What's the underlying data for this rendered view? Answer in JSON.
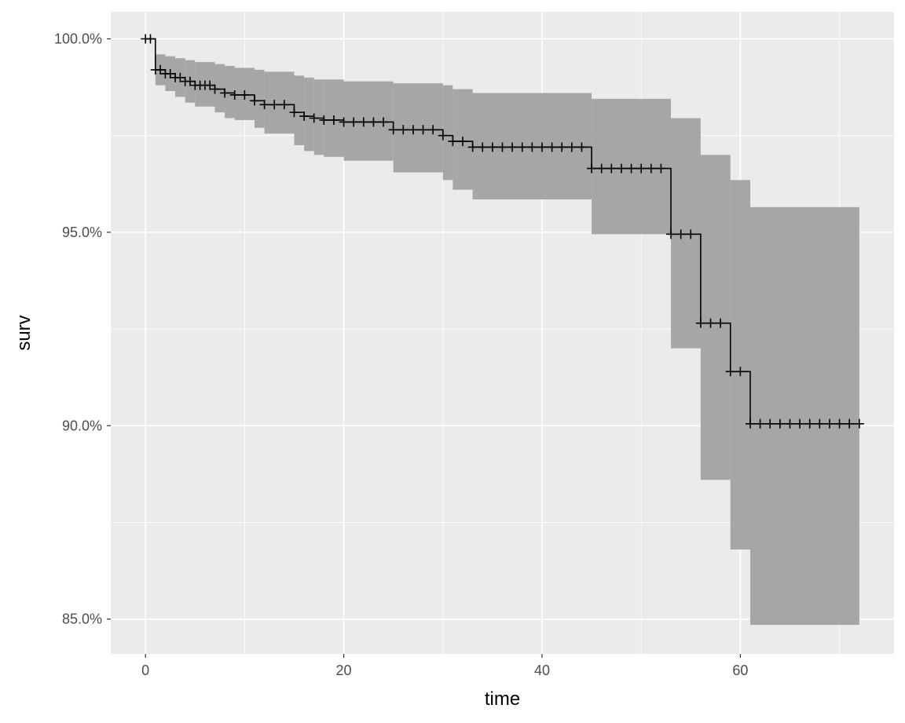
{
  "chart_data": {
    "type": "line",
    "xlabel": "time",
    "ylabel": "surv",
    "xlim": [
      -3.5,
      75.5
    ],
    "ylim": [
      84.1,
      100.7
    ],
    "x_ticks": [
      0,
      20,
      40,
      60
    ],
    "x_minor_ticks": [
      10,
      30,
      50,
      70
    ],
    "y_ticks": [
      100,
      95,
      90,
      85
    ],
    "y_tick_labels": [
      "100.0%",
      "95.0%",
      "90.0%",
      "85.0%"
    ],
    "y_minor_ticks": [
      97.5,
      92.5,
      87.5
    ],
    "grid": true,
    "colors": {
      "panel_background": "#ebebeb",
      "grid": "#ffffff",
      "ribbon": "#a6a6a6",
      "line": "#000000",
      "tick_label": "#4d4d4d",
      "axis_title": "#000000"
    },
    "survival_steps": [
      {
        "time": 0,
        "surv": 100.0,
        "lower": 100.0,
        "upper": 100.0
      },
      {
        "time": 1,
        "surv": 99.2,
        "lower": 98.8,
        "upper": 99.6
      },
      {
        "time": 2,
        "surv": 99.1,
        "lower": 98.65,
        "upper": 99.55
      },
      {
        "time": 3,
        "surv": 99.0,
        "lower": 98.5,
        "upper": 99.5
      },
      {
        "time": 4,
        "surv": 98.9,
        "lower": 98.35,
        "upper": 99.45
      },
      {
        "time": 5,
        "surv": 98.8,
        "lower": 98.25,
        "upper": 99.4
      },
      {
        "time": 7,
        "surv": 98.7,
        "lower": 98.1,
        "upper": 99.35
      },
      {
        "time": 8,
        "surv": 98.6,
        "lower": 97.95,
        "upper": 99.3
      },
      {
        "time": 9,
        "surv": 98.55,
        "lower": 97.9,
        "upper": 99.25
      },
      {
        "time": 11,
        "surv": 98.4,
        "lower": 97.7,
        "upper": 99.2
      },
      {
        "time": 12,
        "surv": 98.3,
        "lower": 97.55,
        "upper": 99.15
      },
      {
        "time": 15,
        "surv": 98.1,
        "lower": 97.25,
        "upper": 99.05
      },
      {
        "time": 16,
        "surv": 98.0,
        "lower": 97.1,
        "upper": 99.0
      },
      {
        "time": 17,
        "surv": 97.95,
        "lower": 97.0,
        "upper": 98.95
      },
      {
        "time": 18,
        "surv": 97.9,
        "lower": 96.95,
        "upper": 98.95
      },
      {
        "time": 20,
        "surv": 97.85,
        "lower": 96.85,
        "upper": 98.9
      },
      {
        "time": 25,
        "surv": 97.65,
        "lower": 96.55,
        "upper": 98.85
      },
      {
        "time": 30,
        "surv": 97.5,
        "lower": 96.35,
        "upper": 98.8
      },
      {
        "time": 31,
        "surv": 97.35,
        "lower": 96.1,
        "upper": 98.7
      },
      {
        "time": 33,
        "surv": 97.2,
        "lower": 95.85,
        "upper": 98.6
      },
      {
        "time": 45,
        "surv": 96.65,
        "lower": 94.95,
        "upper": 98.45
      },
      {
        "time": 53,
        "surv": 94.95,
        "lower": 92.0,
        "upper": 97.95
      },
      {
        "time": 56,
        "surv": 92.65,
        "lower": 88.6,
        "upper": 97.0
      },
      {
        "time": 59,
        "surv": 91.4,
        "lower": 86.8,
        "upper": 96.35
      },
      {
        "time": 61,
        "surv": 90.05,
        "lower": 84.85,
        "upper": 95.65
      }
    ],
    "end_time": 72,
    "censor_times": [
      0,
      0.5,
      1,
      1.5,
      2,
      2.5,
      3,
      3.5,
      4,
      4.5,
      5,
      5.5,
      6,
      6.5,
      7,
      8,
      9,
      10,
      11,
      12,
      13,
      14,
      15,
      16,
      17,
      18,
      19,
      20,
      21,
      22,
      23,
      24,
      25,
      26,
      27,
      28,
      29,
      30,
      31,
      32,
      33,
      34,
      35,
      36,
      37,
      38,
      39,
      40,
      41,
      42,
      43,
      44,
      45,
      46,
      47,
      48,
      49,
      50,
      51,
      52,
      53,
      54,
      55,
      56,
      57,
      58,
      59,
      60,
      61,
      62,
      63,
      64,
      65,
      66,
      67,
      68,
      69,
      70,
      71,
      72
    ]
  }
}
